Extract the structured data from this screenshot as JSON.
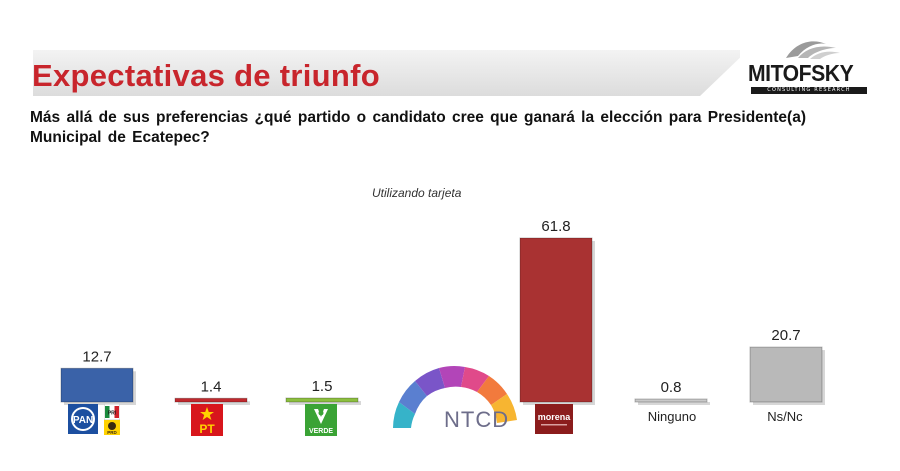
{
  "header": {
    "title": "Expectativas de triunfo",
    "logo": "MITOFSKY",
    "logo_subtext": "CONSULTING RESEARCH"
  },
  "question": "Más allá de sus preferencias ¿qué partido o candidato cree que ganará la elección para Presidente(a) Municipal de Ecatepec?",
  "chart_data": {
    "type": "bar",
    "subtitle": "Utilizando tarjeta",
    "categories": [
      "PAN-PRI-PRD",
      "PT",
      "VERDE",
      "",
      "morena",
      "Ninguno",
      "Ns/Nc"
    ],
    "values": [
      12.7,
      1.4,
      1.5,
      null,
      61.8,
      0.8,
      20.7
    ],
    "value_labels": [
      "12.7",
      "1.4",
      "1.5",
      "",
      "61.8",
      "0.8",
      "20.7"
    ],
    "ylim": [
      0,
      70
    ],
    "grid": false,
    "legend": "none",
    "colors": [
      "#3a62a8",
      "#c0282d",
      "#8cbf3f",
      "",
      "#a93232",
      "#c8c8c8",
      "#b9b9b9"
    ],
    "text_labels": {
      "ninguno": "Ninguno",
      "nsnc": "Ns/Nc"
    }
  },
  "icons": {
    "pan": "PAN",
    "pri": "PRI",
    "prd": "PRD",
    "pt": "PT",
    "verde": "VERDE",
    "morena": "morena"
  },
  "watermark": "NTCD",
  "colors": {
    "title": "#c8252c",
    "header_band": "#e3e3e3"
  }
}
